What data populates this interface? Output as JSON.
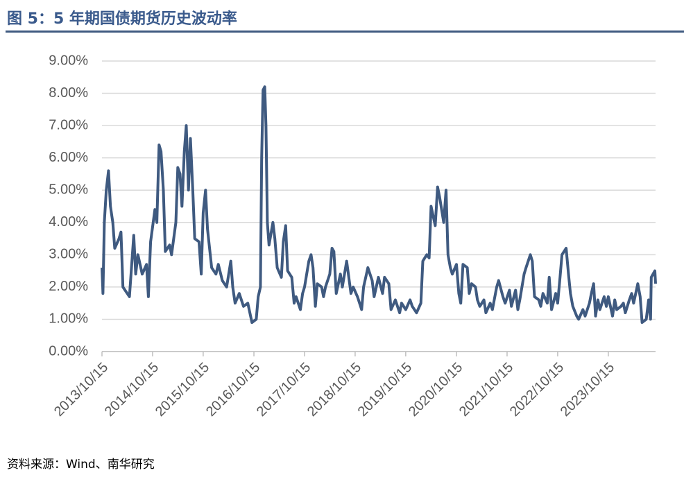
{
  "chart_data": {
    "type": "line",
    "title": "图 5：5 年期国债期货历史波动率",
    "source": "资料来源：Wind、南华研究",
    "x": [
      "2013/10/15",
      "2013/10/22",
      "2013/11/01",
      "2013/11/15",
      "2013/12/01",
      "2013/12/15",
      "2014/01/01",
      "2014/01/15",
      "2014/02/15",
      "2014/03/01",
      "2014/03/15",
      "2014/04/15",
      "2014/05/01",
      "2014/06/01",
      "2014/06/15",
      "2014/07/01",
      "2014/08/01",
      "2014/09/01",
      "2014/09/15",
      "2014/10/01",
      "2014/11/01",
      "2014/11/15",
      "2014/12/01",
      "2014/12/15",
      "2015/01/01",
      "2015/01/15",
      "2015/02/15",
      "2015/03/01",
      "2015/04/01",
      "2015/04/15",
      "2015/05/01",
      "2015/05/15",
      "2015/06/01",
      "2015/06/15",
      "2015/07/01",
      "2015/07/15",
      "2015/08/01",
      "2015/08/15",
      "2015/09/15",
      "2015/10/01",
      "2015/10/15",
      "2015/11/01",
      "2015/11/15",
      "2015/12/15",
      "2016/01/15",
      "2016/02/01",
      "2016/03/01",
      "2016/04/01",
      "2016/05/01",
      "2016/05/15",
      "2016/06/01",
      "2016/07/01",
      "2016/08/01",
      "2016/09/01",
      "2016/10/01",
      "2016/11/01",
      "2016/11/15",
      "2016/12/01",
      "2016/12/10",
      "2016/12/20",
      "2017/01/01",
      "2017/01/10",
      "2017/01/20",
      "2017/02/01",
      "2017/03/01",
      "2017/03/15",
      "2017/04/01",
      "2017/05/01",
      "2017/05/15",
      "2017/06/01",
      "2017/06/15",
      "2017/07/15",
      "2017/08/01",
      "2017/08/15",
      "2017/09/15",
      "2017/10/01",
      "2017/10/15",
      "2017/11/15",
      "2017/12/01",
      "2017/12/15",
      "2018/01/01",
      "2018/01/15",
      "2018/02/15",
      "2018/03/01",
      "2018/03/15",
      "2018/04/15",
      "2018/05/01",
      "2018/05/15",
      "2018/06/01",
      "2018/07/01",
      "2018/07/15",
      "2018/08/15",
      "2018/09/15",
      "2018/10/01",
      "2018/11/01",
      "2018/12/01",
      "2018/12/15",
      "2019/01/15",
      "2019/02/15",
      "2019/03/01",
      "2019/04/01",
      "2019/05/01",
      "2019/05/15",
      "2019/06/15",
      "2019/07/01",
      "2019/08/01",
      "2019/09/01",
      "2019/09/15",
      "2019/10/15",
      "2019/11/15",
      "2019/12/01",
      "2020/01/01",
      "2020/02/01",
      "2020/02/15",
      "2020/03/15",
      "2020/04/01",
      "2020/04/15",
      "2020/05/15",
      "2020/06/01",
      "2020/06/15",
      "2020/07/15",
      "2020/08/01",
      "2020/08/15",
      "2020/09/01",
      "2020/09/15",
      "2020/10/15",
      "2020/11/01",
      "2020/11/15",
      "2020/12/01",
      "2021/01/01",
      "2021/01/15",
      "2021/02/01",
      "2021/03/01",
      "2021/03/15",
      "2021/04/01",
      "2021/05/01",
      "2021/05/15",
      "2021/06/15",
      "2021/07/01",
      "2021/08/01",
      "2021/08/15",
      "2021/09/15",
      "2021/10/01",
      "2021/11/01",
      "2021/11/15",
      "2021/12/15",
      "2022/01/01",
      "2022/01/15",
      "2022/02/15",
      "2022/03/01",
      "2022/04/01",
      "2022/04/15",
      "2022/05/01",
      "2022/06/01",
      "2022/06/15",
      "2022/07/01",
      "2022/08/01",
      "2022/08/15",
      "2022/09/01",
      "2022/10/01",
      "2022/10/15",
      "2022/11/01",
      "2022/11/15",
      "2022/12/15",
      "2023/01/01",
      "2023/01/15",
      "2023/02/01",
      "2023/03/01",
      "2023/03/15",
      "2023/04/15",
      "2023/05/01",
      "2023/06/01",
      "2023/06/15",
      "2023/07/01",
      "2023/07/15",
      "2023/08/01",
      "2023/08/15",
      "2023/09/15",
      "2023/10/01",
      "2023/10/15",
      "2023/11/15",
      "2023/12/01",
      "2023/12/15",
      "2024/01/15",
      "2024/02/01",
      "2024/02/15",
      "2024/03/15",
      "2024/04/01",
      "2024/04/15",
      "2024/05/15",
      "2024/06/01",
      "2024/06/15",
      "2024/07/15",
      "2024/08/01",
      "2024/08/15",
      "2024/08/20",
      "2024/09/15",
      "2024/09/20"
    ],
    "series": [
      {
        "color": "#3f5a80",
        "values": [
          2.6,
          1.8,
          4.0,
          5.0,
          5.6,
          4.5,
          4.0,
          3.2,
          3.5,
          3.7,
          2.0,
          1.8,
          1.7,
          3.6,
          2.4,
          3.0,
          2.4,
          2.7,
          1.7,
          3.4,
          4.4,
          4.0,
          6.4,
          6.2,
          5.0,
          3.1,
          3.3,
          3.0,
          4.0,
          5.7,
          5.5,
          4.5,
          6.2,
          7.0,
          5.0,
          6.6,
          5.0,
          3.5,
          3.4,
          2.4,
          4.3,
          5.0,
          3.8,
          2.6,
          2.4,
          2.7,
          2.2,
          2.0,
          2.8,
          2.0,
          1.5,
          1.8,
          1.4,
          1.5,
          0.9,
          1.0,
          1.7,
          2.0,
          6.0,
          8.1,
          8.2,
          7.0,
          4.0,
          3.3,
          4.0,
          3.5,
          2.6,
          2.3,
          3.4,
          3.9,
          2.5,
          2.3,
          1.5,
          1.7,
          1.3,
          1.8,
          2.0,
          2.8,
          3.0,
          2.6,
          1.4,
          2.1,
          2.0,
          1.7,
          2.0,
          2.4,
          3.2,
          3.1,
          1.8,
          2.4,
          2.0,
          2.8,
          1.8,
          2.0,
          1.7,
          1.3,
          2.0,
          2.6,
          2.2,
          1.7,
          2.3,
          1.8,
          2.3,
          2.1,
          1.3,
          1.6,
          1.2,
          1.5,
          1.3,
          1.6,
          1.4,
          1.2,
          1.5,
          2.8,
          3.0,
          2.9,
          4.5,
          3.9,
          5.1,
          4.8,
          4.0,
          5.0,
          3.0,
          2.6,
          2.4,
          2.7,
          1.8,
          1.5,
          2.7,
          2.6,
          1.8,
          2.1,
          2.0,
          1.6,
          1.4,
          1.6,
          1.2,
          1.5,
          1.3,
          2.0,
          2.2,
          1.7,
          1.5,
          1.9,
          1.4,
          1.9,
          1.3,
          1.6,
          2.4,
          2.6,
          3.0,
          2.8,
          1.7,
          1.6,
          1.4,
          1.8,
          1.5,
          2.3,
          1.3,
          1.8,
          1.5,
          2.3,
          3.0,
          3.2,
          2.4,
          1.8,
          1.4,
          1.1,
          1.0,
          1.3,
          1.1,
          1.5,
          1.8,
          2.1,
          1.1,
          1.6,
          1.3,
          1.7,
          1.4,
          1.7,
          1.1,
          1.6,
          1.3,
          1.4,
          1.5,
          1.2,
          1.6,
          1.8,
          1.5,
          2.1,
          1.7,
          0.9,
          1.0,
          1.6,
          1.0,
          2.3,
          2.5,
          2.1
        ]
      }
    ],
    "xlim": [
      "2013/10/15",
      "2024/09/20"
    ],
    "xticks": [
      "2013/10/15",
      "2014/10/15",
      "2015/10/15",
      "2016/10/15",
      "2017/10/15",
      "2018/10/15",
      "2019/10/15",
      "2020/10/15",
      "2021/10/15",
      "2022/10/15",
      "2023/10/15"
    ],
    "ylim": [
      0,
      9
    ],
    "yticks": [
      {
        "value": 0,
        "label": "0.00%"
      },
      {
        "value": 1,
        "label": "1.00%"
      },
      {
        "value": 2,
        "label": "2.00%"
      },
      {
        "value": 3,
        "label": "3.00%"
      },
      {
        "value": 4,
        "label": "4.00%"
      },
      {
        "value": 5,
        "label": "5.00%"
      },
      {
        "value": 6,
        "label": "6.00%"
      },
      {
        "value": 7,
        "label": "7.00%"
      },
      {
        "value": 8,
        "label": "8.00%"
      },
      {
        "value": 9,
        "label": "9.00%"
      }
    ],
    "grid": true
  }
}
